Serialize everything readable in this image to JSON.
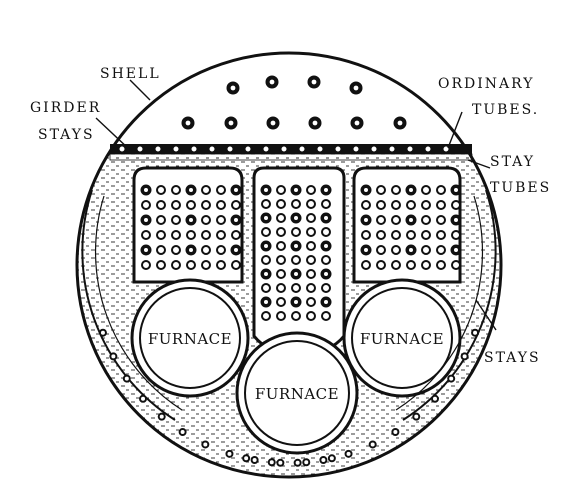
{
  "labels": {
    "shell": "SHELL",
    "girder_stays_line1": "GIRDER",
    "girder_stays_line2": "STAYS",
    "ordinary_tubes_line1": "ORDINARY",
    "ordinary_tubes_line2": "TUBES.",
    "stay_tubes_line1": "STAY",
    "stay_tubes_line2": "TUBES",
    "stays": "STAYS"
  },
  "furnaces": [
    {
      "id": "left",
      "label": "FURNACE"
    },
    {
      "id": "center",
      "label": "FURNACE"
    },
    {
      "id": "right",
      "label": "FURNACE"
    }
  ],
  "colors": {
    "ink": "#111111",
    "paper": "#ffffff"
  }
}
